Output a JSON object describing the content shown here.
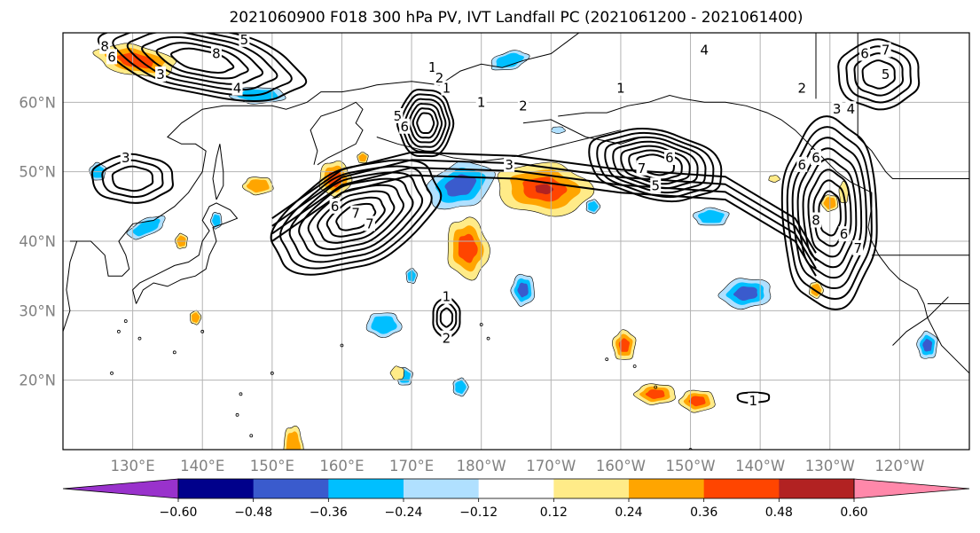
{
  "title": "2021060900 F018 300 hPa PV, IVT Landfall PC (2021061200 - 2021061400)",
  "map": {
    "lat_labels": [
      "60°N",
      "50°N",
      "40°N",
      "30°N",
      "20°N"
    ],
    "lon_labels": [
      "130°E",
      "140°E",
      "150°E",
      "160°E",
      "170°E",
      "180°W",
      "170°W",
      "160°W",
      "150°W",
      "140°W",
      "130°W",
      "120°W"
    ],
    "colors": {
      "grid": "#b3b3b3",
      "coast": "#000000",
      "contour": "#000000"
    },
    "contour_labels": [
      {
        "text": "8",
        "lon": 126,
        "lat": 68
      },
      {
        "text": "6",
        "lon": 127,
        "lat": 66.5
      },
      {
        "text": "8",
        "lon": 142,
        "lat": 67
      },
      {
        "text": "3",
        "lon": 134,
        "lat": 64
      },
      {
        "text": "4",
        "lon": 145,
        "lat": 62
      },
      {
        "text": "5",
        "lon": 146,
        "lat": 69
      },
      {
        "text": "3",
        "lon": 129,
        "lat": 52
      },
      {
        "text": "5",
        "lon": 168,
        "lat": 58
      },
      {
        "text": "6",
        "lon": 169,
        "lat": 56.5
      },
      {
        "text": "6",
        "lon": 159,
        "lat": 45
      },
      {
        "text": "7",
        "lon": 162,
        "lat": 44
      },
      {
        "text": "7",
        "lon": 164,
        "lat": 42.5
      },
      {
        "text": "1",
        "lon": 175,
        "lat": 62
      },
      {
        "text": "1",
        "lon": 180,
        "lat": 60
      },
      {
        "text": "2",
        "lon": 186,
        "lat": 59.5
      },
      {
        "text": "3",
        "lon": 184,
        "lat": 51
      },
      {
        "text": "1",
        "lon": 173,
        "lat": 65
      },
      {
        "text": "2",
        "lon": 174,
        "lat": 63.5
      },
      {
        "text": "4",
        "lon": 212,
        "lat": 67.5
      },
      {
        "text": "6",
        "lon": 207,
        "lat": 52
      },
      {
        "text": "7",
        "lon": 203,
        "lat": 50.5
      },
      {
        "text": "5",
        "lon": 205,
        "lat": 48
      },
      {
        "text": "1",
        "lon": 200,
        "lat": 62
      },
      {
        "text": "6",
        "lon": 235,
        "lat": 67
      },
      {
        "text": "5",
        "lon": 238,
        "lat": 64
      },
      {
        "text": "7",
        "lon": 238,
        "lat": 67.5
      },
      {
        "text": "2",
        "lon": 226,
        "lat": 62
      },
      {
        "text": "3",
        "lon": 231,
        "lat": 59
      },
      {
        "text": "4",
        "lon": 233,
        "lat": 59
      },
      {
        "text": "6",
        "lon": 228,
        "lat": 52
      },
      {
        "text": "6",
        "lon": 226,
        "lat": 51
      },
      {
        "text": "8",
        "lon": 228,
        "lat": 43
      },
      {
        "text": "6",
        "lon": 232,
        "lat": 41
      },
      {
        "text": "7",
        "lon": 234,
        "lat": 39
      },
      {
        "text": "1",
        "lon": 175,
        "lat": 32
      },
      {
        "text": "2",
        "lon": 175,
        "lat": 26
      },
      {
        "text": "1",
        "lon": 219,
        "lat": 17
      }
    ]
  },
  "colorbar": {
    "ticks": [
      "−0.60",
      "−0.48",
      "−0.36",
      "−0.24",
      "−0.12",
      "0.12",
      "0.24",
      "0.36",
      "0.48",
      "0.60"
    ],
    "colors": [
      "#9932cc",
      "#00008b",
      "#3a5bcd",
      "#00bfff",
      "#b0e0ff",
      "#ffffff",
      "#ffeb88",
      "#ffa500",
      "#ff4500",
      "#b22222",
      "#ff88aa"
    ]
  }
}
